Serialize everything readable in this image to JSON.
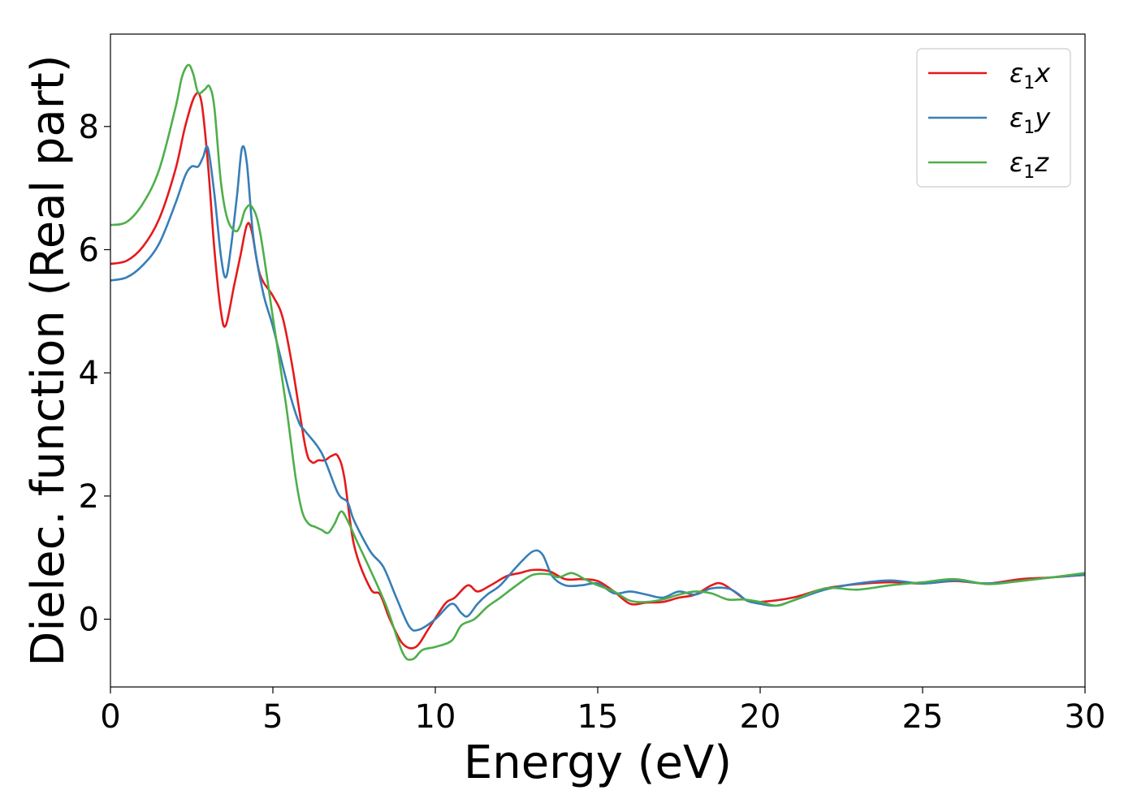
{
  "chart_data": {
    "type": "line",
    "title": "",
    "xlabel": "Energy (eV)",
    "ylabel": "Dielec. function (Real part)",
    "xlim": [
      0,
      30
    ],
    "ylim": [
      -1.1,
      9.5
    ],
    "xticks": [
      0,
      5,
      10,
      15,
      20,
      25,
      30
    ],
    "xtick_labels": [
      "0",
      "5",
      "10",
      "15",
      "20",
      "25",
      "30"
    ],
    "yticks": [
      0,
      2,
      4,
      6,
      8
    ],
    "ytick_labels": [
      "0",
      "2",
      "4",
      "6",
      "8"
    ],
    "grid": false,
    "legend_position": "top-right",
    "series": [
      {
        "name": "ε1x",
        "legend": {
          "main": "ε",
          "sub": "1",
          "axis": "x"
        },
        "color": "#e41a1c",
        "x": [
          0,
          0.5,
          1.0,
          1.5,
          2.0,
          2.3,
          2.6,
          2.8,
          3.0,
          3.2,
          3.4,
          3.55,
          3.8,
          4.0,
          4.2,
          4.35,
          4.6,
          5.0,
          5.3,
          5.6,
          6.0,
          6.2,
          6.4,
          6.6,
          6.8,
          7.0,
          7.2,
          7.5,
          8.0,
          8.3,
          8.6,
          9.0,
          9.4,
          9.8,
          10.3,
          10.6,
          11.0,
          11.3,
          11.7,
          12.2,
          12.6,
          13.0,
          13.5,
          14.0,
          14.5,
          15.0,
          15.5,
          16.0,
          16.5,
          17.0,
          17.5,
          18.0,
          18.5,
          18.8,
          19.2,
          19.6,
          20.0,
          21.0,
          22.0,
          23.0,
          24.0,
          25.0,
          26.0,
          27.0,
          28.0,
          29.0,
          30.0
        ],
        "values": [
          5.77,
          5.82,
          6.05,
          6.5,
          7.3,
          8.0,
          8.5,
          8.4,
          7.4,
          6.0,
          5.0,
          4.77,
          5.4,
          5.9,
          6.4,
          6.3,
          5.6,
          5.25,
          4.9,
          4.1,
          2.8,
          2.55,
          2.58,
          2.58,
          2.65,
          2.65,
          2.3,
          1.2,
          0.5,
          0.4,
          0.0,
          -0.4,
          -0.45,
          -0.15,
          0.25,
          0.35,
          0.55,
          0.45,
          0.55,
          0.7,
          0.75,
          0.8,
          0.78,
          0.65,
          0.65,
          0.62,
          0.45,
          0.25,
          0.27,
          0.28,
          0.35,
          0.4,
          0.55,
          0.58,
          0.45,
          0.3,
          0.28,
          0.35,
          0.5,
          0.57,
          0.6,
          0.58,
          0.62,
          0.58,
          0.65,
          0.68,
          0.72
        ]
      },
      {
        "name": "ε1y",
        "legend": {
          "main": "ε",
          "sub": "1",
          "axis": "y"
        },
        "color": "#377eb8",
        "x": [
          0,
          0.5,
          1.0,
          1.5,
          2.0,
          2.3,
          2.5,
          2.7,
          2.85,
          3.0,
          3.2,
          3.4,
          3.55,
          3.7,
          3.9,
          4.05,
          4.2,
          4.4,
          4.7,
          5.0,
          5.5,
          5.8,
          6.0,
          6.5,
          7.0,
          7.3,
          7.5,
          8.0,
          8.4,
          8.8,
          9.2,
          9.5,
          10.0,
          10.5,
          10.8,
          11.0,
          11.3,
          11.6,
          12.0,
          12.5,
          13.0,
          13.3,
          13.6,
          14.0,
          14.5,
          15.0,
          15.5,
          16.0,
          16.5,
          17.0,
          17.5,
          18.0,
          18.5,
          19.0,
          19.3,
          19.6,
          20.0,
          20.5,
          21.0,
          22.0,
          23.0,
          24.0,
          25.0,
          26.0,
          26.5,
          27.0,
          28.0,
          29.0,
          30.0
        ],
        "values": [
          5.5,
          5.55,
          5.75,
          6.1,
          6.75,
          7.2,
          7.35,
          7.35,
          7.5,
          7.65,
          6.9,
          5.9,
          5.55,
          6.0,
          6.9,
          7.65,
          7.4,
          6.2,
          5.3,
          4.75,
          3.7,
          3.2,
          3.05,
          2.7,
          2.05,
          1.9,
          1.6,
          1.1,
          0.85,
          0.35,
          -0.12,
          -0.17,
          0.0,
          0.25,
          0.1,
          0.05,
          0.25,
          0.4,
          0.55,
          0.85,
          1.1,
          1.05,
          0.7,
          0.55,
          0.55,
          0.58,
          0.42,
          0.45,
          0.4,
          0.35,
          0.45,
          0.4,
          0.5,
          0.5,
          0.42,
          0.3,
          0.25,
          0.22,
          0.3,
          0.48,
          0.58,
          0.63,
          0.58,
          0.63,
          0.6,
          0.58,
          0.62,
          0.68,
          0.72
        ]
      },
      {
        "name": "ε1z",
        "legend": {
          "main": "ε",
          "sub": "1",
          "axis": "z"
        },
        "color": "#4daf4a",
        "x": [
          0,
          0.5,
          1.0,
          1.5,
          2.0,
          2.2,
          2.4,
          2.55,
          2.7,
          2.9,
          3.05,
          3.2,
          3.4,
          3.6,
          3.85,
          4.0,
          4.15,
          4.35,
          4.6,
          5.0,
          5.4,
          5.7,
          5.9,
          6.1,
          6.3,
          6.5,
          6.7,
          6.9,
          7.1,
          7.3,
          7.6,
          8.0,
          8.5,
          9.0,
          9.3,
          9.6,
          10.0,
          10.5,
          10.8,
          11.2,
          11.6,
          12.0,
          12.5,
          13.0,
          13.5,
          13.8,
          14.2,
          14.6,
          15.0,
          15.5,
          16.0,
          16.5,
          17.0,
          17.5,
          18.0,
          18.5,
          19.0,
          19.5,
          20.0,
          20.5,
          21.0,
          22.0,
          23.0,
          24.0,
          25.0,
          26.0,
          27.0,
          28.0,
          29.0,
          30.0
        ],
        "values": [
          6.4,
          6.45,
          6.75,
          7.3,
          8.3,
          8.8,
          9.0,
          8.85,
          8.55,
          8.6,
          8.65,
          8.3,
          7.1,
          6.5,
          6.3,
          6.4,
          6.65,
          6.7,
          6.3,
          4.9,
          3.5,
          2.3,
          1.75,
          1.55,
          1.5,
          1.45,
          1.4,
          1.55,
          1.75,
          1.6,
          1.25,
          0.8,
          0.2,
          -0.55,
          -0.65,
          -0.5,
          -0.45,
          -0.35,
          -0.1,
          0.0,
          0.2,
          0.35,
          0.55,
          0.72,
          0.73,
          0.68,
          0.75,
          0.65,
          0.55,
          0.45,
          0.3,
          0.28,
          0.32,
          0.4,
          0.45,
          0.42,
          0.32,
          0.32,
          0.28,
          0.22,
          0.3,
          0.5,
          0.48,
          0.55,
          0.6,
          0.65,
          0.57,
          0.62,
          0.68,
          0.75
        ]
      }
    ]
  }
}
